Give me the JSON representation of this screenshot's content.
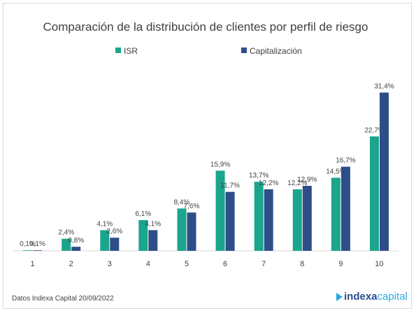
{
  "colors": {
    "isr": "#1AA58C",
    "cap": "#2E4E89",
    "axis": "#d9d9d9",
    "text": "#404040"
  },
  "footer": {
    "source": "Datos Indexa Capital 20/09/2022"
  },
  "brand": {
    "part1": "indexa",
    "part2": "capital",
    "icon": "indexa-logo-icon"
  },
  "chart_data": {
    "type": "bar",
    "title": "Comparación de la distribución de clientes por perfil de riesgo",
    "xlabel": "",
    "ylabel": "",
    "ylim": [
      0,
      33
    ],
    "grid": false,
    "legend_position": "top",
    "categories": [
      "1",
      "2",
      "3",
      "4",
      "5",
      "6",
      "7",
      "8",
      "9",
      "10"
    ],
    "series": [
      {
        "name": "ISR",
        "values": [
          0.1,
          2.4,
          4.1,
          6.1,
          8.4,
          15.9,
          13.7,
          12.2,
          14.5,
          22.7
        ],
        "labels": [
          "0,1%",
          "2,4%",
          "4,1%",
          "6,1%",
          "8,4%",
          "15,9%",
          "13,7%",
          "12,2%",
          "14,5%",
          "22,7%"
        ]
      },
      {
        "name": "Capitalización",
        "values": [
          0.1,
          0.8,
          2.6,
          4.1,
          7.6,
          11.7,
          12.2,
          12.9,
          16.7,
          31.4
        ],
        "labels": [
          "0,1%",
          "0,8%",
          "2,6%",
          "4,1%",
          "7,6%",
          "11,7%",
          "12,2%",
          "12,9%",
          "16,7%",
          "31,4%"
        ]
      }
    ]
  }
}
